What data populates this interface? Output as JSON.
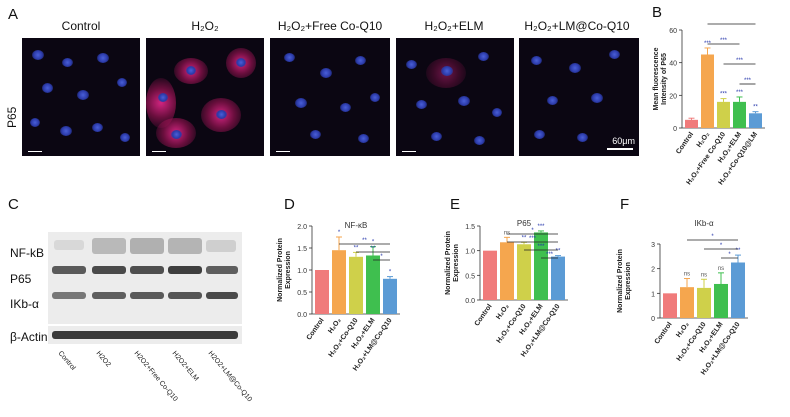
{
  "panels": {
    "a": "A",
    "b": "B",
    "c": "C",
    "d": "D",
    "e": "E",
    "f": "F"
  },
  "micro": {
    "row_label": "P65",
    "titles": [
      "Control",
      "H₂O₂",
      "H₂O₂+Free Co-Q10",
      "H₂O₂+ELM",
      "H₂O₂+LM@Co-Q10"
    ],
    "scale_label": "60μm"
  },
  "western": {
    "proteins": [
      "NF-kB",
      "P65",
      "IKb-α",
      "β-Actin"
    ],
    "lanes": [
      "Control",
      "H2O2",
      "H2O2+Free Co-Q10",
      "H2O2+ELM",
      "H2O2+LM@Co-Q10"
    ]
  },
  "colors": {
    "control": "#f07b7b",
    "h2o2": "#f5a64e",
    "coq10": "#cfd04a",
    "elm": "#3fbf4f",
    "lmcoq10": "#5b9bd5",
    "sig": "#2233aa"
  },
  "chart_data": [
    {
      "panel": "B",
      "type": "bar",
      "title": "",
      "ylabel": "Mean fluorescence Intensity of P65",
      "categories": [
        "Control",
        "H₂O₂",
        "H₂O₂+Free Co-Q10",
        "H₂O₂+ELM",
        "H₂O₂+Co-Q10@LM"
      ],
      "values": [
        5,
        45,
        16,
        16,
        9
      ],
      "errors": [
        1,
        4,
        2,
        3,
        1
      ],
      "ylim": [
        0,
        60
      ],
      "yticks": [
        "0",
        "20",
        "40",
        "60"
      ],
      "bar_sig": [
        "",
        "***",
        "***",
        "***",
        "**"
      ],
      "brackets": [
        {
          "from": 1,
          "to": 4,
          "label": "***"
        },
        {
          "from": 1,
          "to": 3,
          "label": "***"
        },
        {
          "from": 2,
          "to": 4,
          "label": "***"
        },
        {
          "from": 3,
          "to": 4,
          "label": "***"
        }
      ]
    },
    {
      "panel": "D",
      "type": "bar",
      "title": "NF-κB",
      "ylabel": "Normalized Protein Expression",
      "categories": [
        "Control",
        "H₂O₂",
        "H₂O₂+Co-Q10",
        "H₂O₂+ELM",
        "H₂O₂+LM@Co-Q10"
      ],
      "values": [
        1.0,
        1.45,
        1.3,
        1.33,
        0.8
      ],
      "errors": [
        0,
        0.3,
        0.1,
        0.2,
        0.05
      ],
      "ylim": [
        0,
        2.0
      ],
      "yticks": [
        "0.0",
        "0.5",
        "1.0",
        "1.5",
        "2.0"
      ],
      "bar_sig": [
        "",
        "*",
        "**",
        "*",
        "*"
      ],
      "brackets": [
        {
          "from": 1,
          "to": 4,
          "label": "**"
        },
        {
          "from": 2,
          "to": 4,
          "label": "**"
        },
        {
          "from": 3,
          "to": 4,
          "label": "*"
        }
      ]
    },
    {
      "panel": "E",
      "type": "bar",
      "title": "P65",
      "ylabel": "Normalized Protein Expression",
      "categories": [
        "Control",
        "H₂O₂",
        "H₂O₂+Co-Q10",
        "H₂O₂+ELM",
        "H₂O₂+LM@Co-Q10"
      ],
      "values": [
        1.0,
        1.17,
        1.13,
        1.37,
        0.88
      ],
      "errors": [
        0,
        0.1,
        0.04,
        0.03,
        0.02
      ],
      "ylim": [
        0,
        1.5
      ],
      "yticks": [
        "0.0",
        "0.5",
        "1.0",
        "1.5"
      ],
      "bar_sig": [
        "",
        "ns",
        "**",
        "***",
        "**"
      ],
      "brackets": [
        {
          "from": 1,
          "to": 4,
          "label": "*"
        },
        {
          "from": 1,
          "to": 4,
          "label": "***"
        },
        {
          "from": 2,
          "to": 4,
          "label": "***"
        },
        {
          "from": 3,
          "to": 4,
          "label": "***"
        }
      ]
    },
    {
      "panel": "F",
      "type": "bar",
      "title": "IKb-α",
      "ylabel": "Normalized Protein Expression",
      "categories": [
        "Control",
        "H₂O₂",
        "H₂O₂+Co-Q10",
        "H₂O₂+ELM",
        "H₂O₂+LM@Co-Q10"
      ],
      "values": [
        1.0,
        1.25,
        1.22,
        1.38,
        2.25
      ],
      "errors": [
        0,
        0.35,
        0.35,
        0.45,
        0.3
      ],
      "ylim": [
        0,
        3
      ],
      "yticks": [
        "0",
        "1",
        "2",
        "3"
      ],
      "bar_sig": [
        "",
        "ns",
        "ns",
        "ns",
        "**"
      ],
      "brackets": [
        {
          "from": 1,
          "to": 4,
          "label": "*"
        },
        {
          "from": 2,
          "to": 4,
          "label": "*"
        },
        {
          "from": 3,
          "to": 4,
          "label": "*"
        }
      ]
    }
  ]
}
